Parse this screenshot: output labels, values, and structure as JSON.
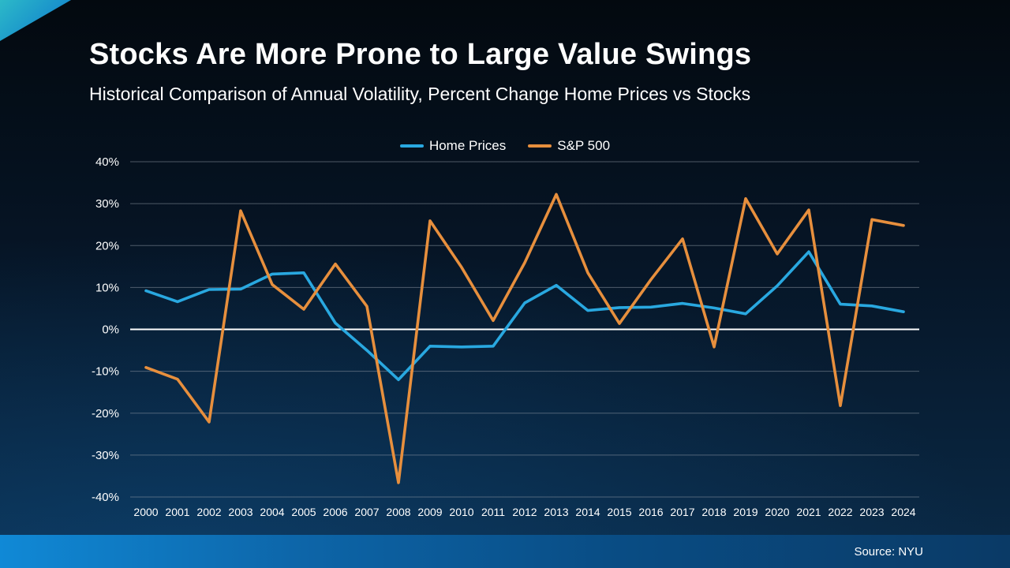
{
  "page": {
    "title": "Stocks Are More Prone to Large Value Swings",
    "subtitle": "Historical Comparison of Annual Volatility, Percent Change Home Prices vs Stocks",
    "source": "Source: NYU"
  },
  "chart_data": {
    "type": "line",
    "categories": [
      "2000",
      "2001",
      "2002",
      "2003",
      "2004",
      "2005",
      "2006",
      "2007",
      "2008",
      "2009",
      "2010",
      "2011",
      "2012",
      "2013",
      "2014",
      "2015",
      "2016",
      "2017",
      "2018",
      "2019",
      "2020",
      "2021",
      "2022",
      "2023",
      "2024"
    ],
    "series": [
      {
        "name": "Home Prices",
        "color": "#29A8E0",
        "values": [
          9.2,
          6.6,
          9.5,
          9.6,
          13.2,
          13.5,
          1.5,
          -5.0,
          -12.0,
          -4.0,
          -4.2,
          -4.0,
          6.3,
          10.5,
          4.5,
          5.2,
          5.3,
          6.2,
          5.1,
          3.7,
          10.4,
          18.5,
          6.0,
          5.6,
          4.2
        ]
      },
      {
        "name": "S&P 500",
        "color": "#E78F3D",
        "values": [
          -9.1,
          -11.9,
          -22.1,
          28.3,
          10.7,
          4.8,
          15.6,
          5.5,
          -36.6,
          25.9,
          14.8,
          2.1,
          15.9,
          32.2,
          13.5,
          1.4,
          11.9,
          21.6,
          -4.2,
          31.2,
          18.0,
          28.5,
          -18.2,
          26.2,
          24.8
        ]
      }
    ],
    "ylim": [
      -40,
      40
    ],
    "yticks": [
      40,
      30,
      20,
      10,
      0,
      -10,
      -20,
      -30,
      -40
    ],
    "ytick_suffix": "%",
    "grid": true,
    "zero_line": true,
    "legend_position": "top-center",
    "grid_color": "#8A94A0",
    "zero_line_color": "#FFFFFF",
    "axis_text_color": "#FFFFFF"
  }
}
